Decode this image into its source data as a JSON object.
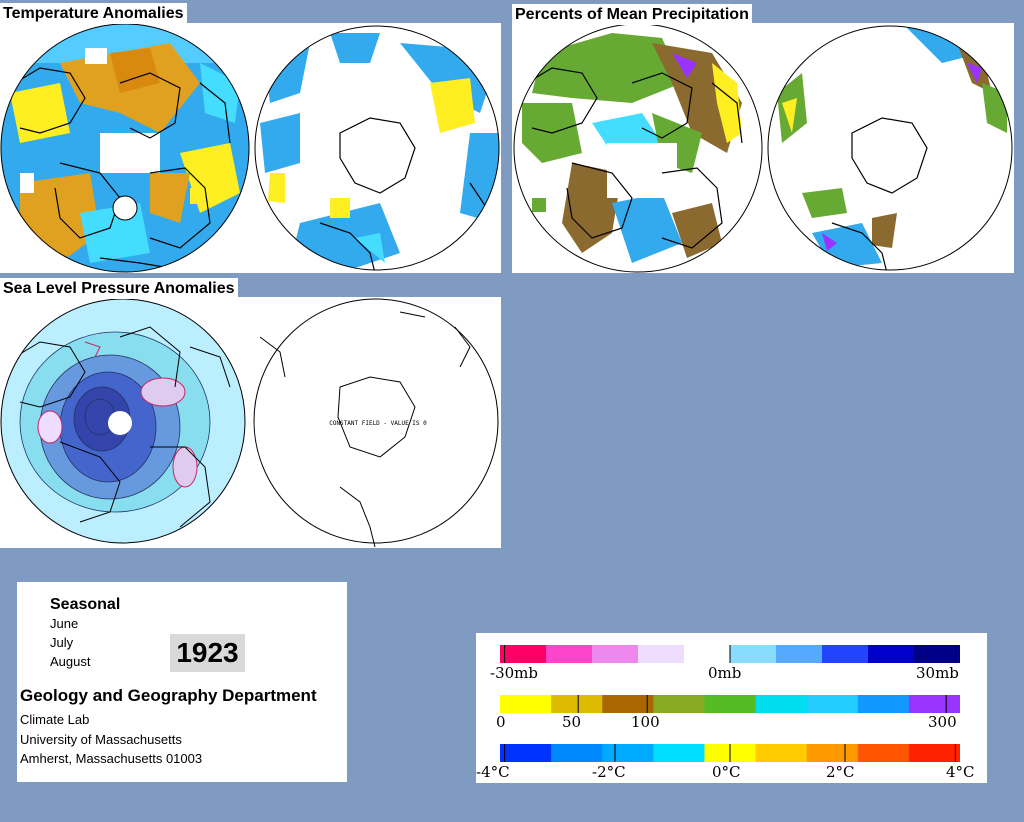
{
  "titles": {
    "temperature": "Temperature Anomalies",
    "precipitation": "Percents of Mean Precipitation",
    "pressure": "Sea Level Pressure Anomalies"
  },
  "pressure_map": {
    "constant_field_note": "CONSTANT FIELD - VALUE IS 0"
  },
  "info": {
    "season_label": "Seasonal",
    "months": [
      "June",
      "July",
      "August"
    ],
    "year": "1923",
    "department": "Geology and Geography Department",
    "lines": [
      "Climate Lab",
      "University of Massachusetts",
      "Amherst, Massachusetts 01003"
    ]
  },
  "legends": {
    "pressure": {
      "ticks": [
        "-30mb",
        "0mb",
        "30mb"
      ],
      "colors": [
        "#ff0066",
        "#ff44cc",
        "#ee88ee",
        "#eeddff",
        "#ffffff",
        "#88ddff",
        "#55aaff",
        "#2244ff",
        "#0000cc",
        "#000088"
      ]
    },
    "precipitation": {
      "ticks": [
        "0",
        "50",
        "100",
        "300"
      ],
      "colors": [
        "#ffff00",
        "#ddbb00",
        "#aa6600",
        "#88aa22",
        "#55bb22",
        "#00ddee",
        "#22ccff",
        "#1199ff",
        "#9933ff"
      ]
    },
    "temperature": {
      "ticks": [
        "-4°C",
        "-2°C",
        "0°C",
        "2°C",
        "4°C"
      ],
      "colors": [
        "#0033ff",
        "#0088ff",
        "#00aaff",
        "#00ddff",
        "#ffff00",
        "#ffcc00",
        "#ff9900",
        "#ff5500",
        "#ff2200"
      ]
    }
  },
  "map_colors": {
    "ocean_blue": "#33aaee",
    "cyan": "#44ddff",
    "yellow": "#ffee22",
    "orange": "#e0a020",
    "brown": "#8b6a30",
    "green": "#66aa33",
    "purple": "#9933ff",
    "pressure_blue": "#4466cc",
    "pressure_light": "#bbeeff",
    "pressure_pink": "#cc2266"
  }
}
